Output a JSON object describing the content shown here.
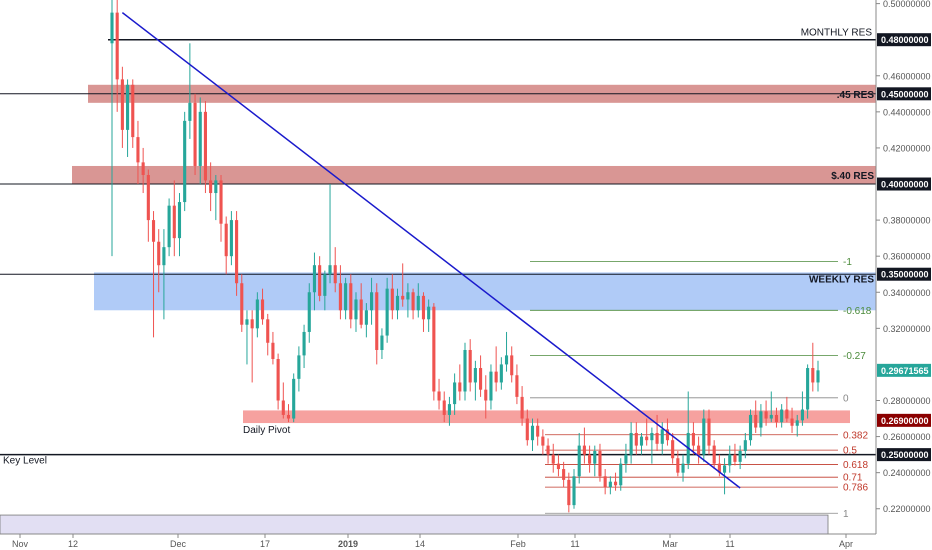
{
  "chart_data": {
    "type": "candlestick",
    "y_axis": {
      "side": "right",
      "ylim": [
        0.206,
        0.502
      ],
      "ticks": [
        {
          "value": 0.5,
          "label": "0.50000000"
        },
        {
          "value": 0.46,
          "label": "0.46000000"
        },
        {
          "value": 0.44,
          "label": "0.44000000"
        },
        {
          "value": 0.42,
          "label": "0.42000000"
        },
        {
          "value": 0.38,
          "label": "0.38000000"
        },
        {
          "value": 0.36,
          "label": "0.36000000"
        },
        {
          "value": 0.34,
          "label": "0.34000000"
        },
        {
          "value": 0.32,
          "label": "0.32000000"
        },
        {
          "value": 0.28,
          "label": "0.28000000"
        },
        {
          "value": 0.26,
          "label": "0.26000000"
        },
        {
          "value": 0.24,
          "label": "0.24000000"
        },
        {
          "value": 0.22,
          "label": "0.22000000"
        }
      ]
    },
    "x_axis": {
      "ticks": [
        {
          "label": "Nov",
          "bold": false
        },
        {
          "label": "12",
          "bold": false
        },
        {
          "label": "Dec",
          "bold": false
        },
        {
          "label": "17",
          "bold": false
        },
        {
          "label": "2019",
          "bold": true
        },
        {
          "label": "14",
          "bold": false
        },
        {
          "label": "Feb",
          "bold": false
        },
        {
          "label": "11",
          "bold": false
        },
        {
          "label": "Mar",
          "bold": false
        },
        {
          "label": "11",
          "bold": false
        },
        {
          "label": "Apr",
          "bold": false
        }
      ]
    },
    "price_tags": [
      {
        "value": 0.48,
        "label": "0.48000000",
        "bg": "#131722",
        "fg": "#ffffff"
      },
      {
        "value": 0.45,
        "label": "0.45000000",
        "bg": "#131722",
        "fg": "#ffffff"
      },
      {
        "value": 0.4,
        "label": "0.40000000",
        "bg": "#131722",
        "fg": "#ffffff"
      },
      {
        "value": 0.35,
        "label": "0.35000000",
        "bg": "#131722",
        "fg": "#ffffff"
      },
      {
        "value": 0.29671565,
        "label": "0.29671565",
        "bg": "#26a69a",
        "fg": "#ffffff"
      },
      {
        "value": 0.269,
        "label": "0.26900000",
        "bg": "#8b0000",
        "fg": "#ffffff"
      },
      {
        "value": 0.25,
        "label": "0.25000000",
        "bg": "#131722",
        "fg": "#ffffff"
      }
    ],
    "horizontal_levels": [
      {
        "value": 0.48,
        "label": "MONTHLY RES",
        "color": "#131722",
        "width": 1.5
      },
      {
        "value": 0.45,
        "label": "",
        "color": "#131722",
        "width": 1
      },
      {
        "value": 0.4,
        "label": "",
        "color": "#131722",
        "width": 1
      },
      {
        "value": 0.35,
        "label": "",
        "color": "#131722",
        "width": 1
      },
      {
        "value": 0.25,
        "label": "Key Level",
        "color": "#131722",
        "width": 1.5
      }
    ],
    "zones": [
      {
        "top": 0.455,
        "bottom": 0.445,
        "label": ".45 RES",
        "color": "#c0504d",
        "opacity": 0.6
      },
      {
        "top": 0.41,
        "bottom": 0.4,
        "label": "$.40 RES",
        "color": "#c0504d",
        "opacity": 0.6
      },
      {
        "top": 0.351,
        "bottom": 0.33,
        "label": "WEEKLY RES",
        "color": "#6fa0f0",
        "opacity": 0.55
      },
      {
        "top": 0.2745,
        "bottom": 0.2675,
        "label": "Daily Pivot",
        "color": "#ef5350",
        "opacity": 0.55
      },
      {
        "top": 0.2165,
        "bottom": 0.2035,
        "label": "",
        "color": "#c5c0e8",
        "opacity": 0.5
      }
    ],
    "fib_upper": [
      {
        "label": "-1",
        "value": 0.357,
        "color": "#4a8a3a"
      },
      {
        "label": "-0.618",
        "value": 0.33,
        "color": "#4a8a3a"
      },
      {
        "label": "-0.27",
        "value": 0.305,
        "color": "#4a8a3a"
      },
      {
        "label": "0",
        "value": 0.2815,
        "color": "#888888"
      }
    ],
    "fib_lower": [
      {
        "label": "0.382",
        "value": 0.261,
        "color": "#c0392b"
      },
      {
        "label": "0.5",
        "value": 0.2525,
        "color": "#c0392b"
      },
      {
        "label": "0.618",
        "value": 0.2445,
        "color": "#c0392b"
      },
      {
        "label": "0.71",
        "value": 0.2375,
        "color": "#c0392b"
      },
      {
        "label": "0.786",
        "value": 0.232,
        "color": "#c0392b"
      },
      {
        "label": "1",
        "value": 0.2175,
        "color": "#888888"
      }
    ],
    "trendline": {
      "from": {
        "bar": 2,
        "value": 0.495
      },
      "to": {
        "bar": 121,
        "value": 0.2315
      },
      "color": "#1a1acc"
    },
    "candles": [
      {
        "o": 0.478,
        "h": 0.505,
        "l": 0.36,
        "c": 0.495
      },
      {
        "o": 0.495,
        "h": 0.505,
        "l": 0.44,
        "c": 0.458
      },
      {
        "o": 0.458,
        "h": 0.465,
        "l": 0.42,
        "c": 0.43
      },
      {
        "o": 0.43,
        "h": 0.458,
        "l": 0.415,
        "c": 0.455
      },
      {
        "o": 0.455,
        "h": 0.458,
        "l": 0.42,
        "c": 0.426
      },
      {
        "o": 0.426,
        "h": 0.435,
        "l": 0.4,
        "c": 0.412
      },
      {
        "o": 0.412,
        "h": 0.42,
        "l": 0.395,
        "c": 0.405
      },
      {
        "o": 0.405,
        "h": 0.408,
        "l": 0.368,
        "c": 0.38
      },
      {
        "o": 0.38,
        "h": 0.385,
        "l": 0.315,
        "c": 0.368
      },
      {
        "o": 0.368,
        "h": 0.375,
        "l": 0.34,
        "c": 0.355
      },
      {
        "o": 0.355,
        "h": 0.375,
        "l": 0.325,
        "c": 0.365
      },
      {
        "o": 0.365,
        "h": 0.392,
        "l": 0.36,
        "c": 0.388
      },
      {
        "o": 0.388,
        "h": 0.402,
        "l": 0.36,
        "c": 0.37
      },
      {
        "o": 0.37,
        "h": 0.395,
        "l": 0.36,
        "c": 0.39
      },
      {
        "o": 0.39,
        "h": 0.44,
        "l": 0.385,
        "c": 0.435
      },
      {
        "o": 0.435,
        "h": 0.478,
        "l": 0.425,
        "c": 0.445
      },
      {
        "o": 0.445,
        "h": 0.45,
        "l": 0.405,
        "c": 0.41
      },
      {
        "o": 0.41,
        "h": 0.448,
        "l": 0.4,
        "c": 0.44
      },
      {
        "o": 0.44,
        "h": 0.446,
        "l": 0.395,
        "c": 0.402
      },
      {
        "o": 0.402,
        "h": 0.412,
        "l": 0.385,
        "c": 0.395
      },
      {
        "o": 0.395,
        "h": 0.405,
        "l": 0.38,
        "c": 0.402
      },
      {
        "o": 0.402,
        "h": 0.405,
        "l": 0.368,
        "c": 0.378
      },
      {
        "o": 0.378,
        "h": 0.382,
        "l": 0.35,
        "c": 0.36
      },
      {
        "o": 0.36,
        "h": 0.385,
        "l": 0.355,
        "c": 0.38
      },
      {
        "o": 0.38,
        "h": 0.385,
        "l": 0.338,
        "c": 0.345
      },
      {
        "o": 0.345,
        "h": 0.35,
        "l": 0.318,
        "c": 0.322
      },
      {
        "o": 0.322,
        "h": 0.33,
        "l": 0.3,
        "c": 0.325
      },
      {
        "o": 0.325,
        "h": 0.33,
        "l": 0.29,
        "c": 0.32
      },
      {
        "o": 0.32,
        "h": 0.34,
        "l": 0.315,
        "c": 0.336
      },
      {
        "o": 0.336,
        "h": 0.342,
        "l": 0.322,
        "c": 0.325
      },
      {
        "o": 0.325,
        "h": 0.328,
        "l": 0.305,
        "c": 0.312
      },
      {
        "o": 0.312,
        "h": 0.318,
        "l": 0.3,
        "c": 0.303
      },
      {
        "o": 0.303,
        "h": 0.306,
        "l": 0.275,
        "c": 0.28
      },
      {
        "o": 0.28,
        "h": 0.29,
        "l": 0.27,
        "c": 0.272
      },
      {
        "o": 0.272,
        "h": 0.278,
        "l": 0.268,
        "c": 0.27
      },
      {
        "o": 0.27,
        "h": 0.295,
        "l": 0.268,
        "c": 0.292
      },
      {
        "o": 0.292,
        "h": 0.31,
        "l": 0.285,
        "c": 0.305
      },
      {
        "o": 0.305,
        "h": 0.322,
        "l": 0.298,
        "c": 0.318
      },
      {
        "o": 0.318,
        "h": 0.345,
        "l": 0.312,
        "c": 0.34
      },
      {
        "o": 0.34,
        "h": 0.362,
        "l": 0.33,
        "c": 0.355
      },
      {
        "o": 0.355,
        "h": 0.36,
        "l": 0.335,
        "c": 0.338
      },
      {
        "o": 0.338,
        "h": 0.352,
        "l": 0.33,
        "c": 0.35
      },
      {
        "o": 0.35,
        "h": 0.4,
        "l": 0.345,
        "c": 0.355
      },
      {
        "o": 0.355,
        "h": 0.365,
        "l": 0.34,
        "c": 0.345
      },
      {
        "o": 0.345,
        "h": 0.355,
        "l": 0.325,
        "c": 0.33
      },
      {
        "o": 0.33,
        "h": 0.348,
        "l": 0.325,
        "c": 0.345
      },
      {
        "o": 0.345,
        "h": 0.35,
        "l": 0.32,
        "c": 0.325
      },
      {
        "o": 0.325,
        "h": 0.34,
        "l": 0.318,
        "c": 0.336
      },
      {
        "o": 0.336,
        "h": 0.345,
        "l": 0.32,
        "c": 0.322
      },
      {
        "o": 0.322,
        "h": 0.334,
        "l": 0.315,
        "c": 0.33
      },
      {
        "o": 0.33,
        "h": 0.348,
        "l": 0.322,
        "c": 0.34
      },
      {
        "o": 0.34,
        "h": 0.345,
        "l": 0.3,
        "c": 0.308
      },
      {
        "o": 0.308,
        "h": 0.32,
        "l": 0.303,
        "c": 0.316
      },
      {
        "o": 0.316,
        "h": 0.348,
        "l": 0.312,
        "c": 0.342
      },
      {
        "o": 0.342,
        "h": 0.35,
        "l": 0.325,
        "c": 0.33
      },
      {
        "o": 0.33,
        "h": 0.342,
        "l": 0.325,
        "c": 0.338
      },
      {
        "o": 0.338,
        "h": 0.356,
        "l": 0.332,
        "c": 0.336
      },
      {
        "o": 0.336,
        "h": 0.345,
        "l": 0.326,
        "c": 0.34
      },
      {
        "o": 0.34,
        "h": 0.342,
        "l": 0.325,
        "c": 0.33
      },
      {
        "o": 0.33,
        "h": 0.345,
        "l": 0.326,
        "c": 0.338
      },
      {
        "o": 0.338,
        "h": 0.34,
        "l": 0.318,
        "c": 0.325
      },
      {
        "o": 0.325,
        "h": 0.336,
        "l": 0.318,
        "c": 0.332
      },
      {
        "o": 0.332,
        "h": 0.334,
        "l": 0.28,
        "c": 0.285
      },
      {
        "o": 0.285,
        "h": 0.292,
        "l": 0.275,
        "c": 0.28
      },
      {
        "o": 0.28,
        "h": 0.285,
        "l": 0.268,
        "c": 0.272
      },
      {
        "o": 0.272,
        "h": 0.282,
        "l": 0.266,
        "c": 0.278
      },
      {
        "o": 0.278,
        "h": 0.295,
        "l": 0.272,
        "c": 0.29
      },
      {
        "o": 0.29,
        "h": 0.3,
        "l": 0.28,
        "c": 0.285
      },
      {
        "o": 0.285,
        "h": 0.312,
        "l": 0.28,
        "c": 0.308
      },
      {
        "o": 0.308,
        "h": 0.314,
        "l": 0.285,
        "c": 0.29
      },
      {
        "o": 0.29,
        "h": 0.302,
        "l": 0.28,
        "c": 0.298
      },
      {
        "o": 0.298,
        "h": 0.305,
        "l": 0.282,
        "c": 0.286
      },
      {
        "o": 0.286,
        "h": 0.294,
        "l": 0.27,
        "c": 0.28
      },
      {
        "o": 0.28,
        "h": 0.3,
        "l": 0.275,
        "c": 0.296
      },
      {
        "o": 0.296,
        "h": 0.31,
        "l": 0.285,
        "c": 0.29
      },
      {
        "o": 0.29,
        "h": 0.304,
        "l": 0.286,
        "c": 0.3
      },
      {
        "o": 0.3,
        "h": 0.318,
        "l": 0.296,
        "c": 0.305
      },
      {
        "o": 0.305,
        "h": 0.31,
        "l": 0.29,
        "c": 0.294
      },
      {
        "o": 0.294,
        "h": 0.3,
        "l": 0.278,
        "c": 0.282
      },
      {
        "o": 0.282,
        "h": 0.288,
        "l": 0.266,
        "c": 0.27
      },
      {
        "o": 0.27,
        "h": 0.275,
        "l": 0.255,
        "c": 0.258
      },
      {
        "o": 0.258,
        "h": 0.27,
        "l": 0.252,
        "c": 0.266
      },
      {
        "o": 0.266,
        "h": 0.27,
        "l": 0.255,
        "c": 0.26
      },
      {
        "o": 0.26,
        "h": 0.264,
        "l": 0.25,
        "c": 0.255
      },
      {
        "o": 0.255,
        "h": 0.259,
        "l": 0.245,
        "c": 0.25
      },
      {
        "o": 0.25,
        "h": 0.256,
        "l": 0.24,
        "c": 0.245
      },
      {
        "o": 0.245,
        "h": 0.25,
        "l": 0.238,
        "c": 0.242
      },
      {
        "o": 0.242,
        "h": 0.246,
        "l": 0.232,
        "c": 0.236
      },
      {
        "o": 0.236,
        "h": 0.24,
        "l": 0.218,
        "c": 0.222
      },
      {
        "o": 0.222,
        "h": 0.242,
        "l": 0.22,
        "c": 0.238
      },
      {
        "o": 0.238,
        "h": 0.262,
        "l": 0.234,
        "c": 0.255
      },
      {
        "o": 0.255,
        "h": 0.265,
        "l": 0.245,
        "c": 0.25
      },
      {
        "o": 0.25,
        "h": 0.255,
        "l": 0.24,
        "c": 0.245
      },
      {
        "o": 0.245,
        "h": 0.255,
        "l": 0.238,
        "c": 0.252
      },
      {
        "o": 0.252,
        "h": 0.256,
        "l": 0.235,
        "c": 0.238
      },
      {
        "o": 0.238,
        "h": 0.242,
        "l": 0.228,
        "c": 0.232
      },
      {
        "o": 0.232,
        "h": 0.238,
        "l": 0.228,
        "c": 0.235
      },
      {
        "o": 0.235,
        "h": 0.24,
        "l": 0.23,
        "c": 0.233
      },
      {
        "o": 0.233,
        "h": 0.248,
        "l": 0.23,
        "c": 0.245
      },
      {
        "o": 0.245,
        "h": 0.256,
        "l": 0.24,
        "c": 0.25
      },
      {
        "o": 0.25,
        "h": 0.268,
        "l": 0.245,
        "c": 0.262
      },
      {
        "o": 0.262,
        "h": 0.268,
        "l": 0.25,
        "c": 0.255
      },
      {
        "o": 0.255,
        "h": 0.262,
        "l": 0.25,
        "c": 0.26
      },
      {
        "o": 0.26,
        "h": 0.27,
        "l": 0.255,
        "c": 0.258
      },
      {
        "o": 0.258,
        "h": 0.265,
        "l": 0.245,
        "c": 0.262
      },
      {
        "o": 0.262,
        "h": 0.272,
        "l": 0.252,
        "c": 0.256
      },
      {
        "o": 0.256,
        "h": 0.268,
        "l": 0.25,
        "c": 0.264
      },
      {
        "o": 0.264,
        "h": 0.27,
        "l": 0.255,
        "c": 0.258
      },
      {
        "o": 0.258,
        "h": 0.262,
        "l": 0.245,
        "c": 0.248
      },
      {
        "o": 0.248,
        "h": 0.252,
        "l": 0.238,
        "c": 0.24
      },
      {
        "o": 0.24,
        "h": 0.25,
        "l": 0.235,
        "c": 0.245
      },
      {
        "o": 0.245,
        "h": 0.285,
        "l": 0.242,
        "c": 0.262
      },
      {
        "o": 0.262,
        "h": 0.268,
        "l": 0.25,
        "c": 0.255
      },
      {
        "o": 0.255,
        "h": 0.26,
        "l": 0.245,
        "c": 0.25
      },
      {
        "o": 0.25,
        "h": 0.275,
        "l": 0.246,
        "c": 0.27
      },
      {
        "o": 0.27,
        "h": 0.275,
        "l": 0.25,
        "c": 0.255
      },
      {
        "o": 0.255,
        "h": 0.258,
        "l": 0.242,
        "c": 0.245
      },
      {
        "o": 0.245,
        "h": 0.25,
        "l": 0.238,
        "c": 0.24
      },
      {
        "o": 0.24,
        "h": 0.248,
        "l": 0.228,
        "c": 0.244
      },
      {
        "o": 0.244,
        "h": 0.255,
        "l": 0.24,
        "c": 0.25
      },
      {
        "o": 0.25,
        "h": 0.256,
        "l": 0.244,
        "c": 0.246
      },
      {
        "o": 0.246,
        "h": 0.255,
        "l": 0.242,
        "c": 0.252
      },
      {
        "o": 0.252,
        "h": 0.262,
        "l": 0.248,
        "c": 0.258
      },
      {
        "o": 0.258,
        "h": 0.275,
        "l": 0.255,
        "c": 0.272
      },
      {
        "o": 0.272,
        "h": 0.28,
        "l": 0.262,
        "c": 0.265
      },
      {
        "o": 0.265,
        "h": 0.278,
        "l": 0.26,
        "c": 0.274
      },
      {
        "o": 0.274,
        "h": 0.28,
        "l": 0.266,
        "c": 0.27
      },
      {
        "o": 0.27,
        "h": 0.285,
        "l": 0.268,
        "c": 0.272
      },
      {
        "o": 0.272,
        "h": 0.276,
        "l": 0.265,
        "c": 0.268
      },
      {
        "o": 0.268,
        "h": 0.278,
        "l": 0.265,
        "c": 0.275
      },
      {
        "o": 0.275,
        "h": 0.282,
        "l": 0.268,
        "c": 0.27
      },
      {
        "o": 0.27,
        "h": 0.276,
        "l": 0.262,
        "c": 0.266
      },
      {
        "o": 0.266,
        "h": 0.272,
        "l": 0.26,
        "c": 0.269
      },
      {
        "o": 0.269,
        "h": 0.285,
        "l": 0.266,
        "c": 0.275
      },
      {
        "o": 0.275,
        "h": 0.3,
        "l": 0.27,
        "c": 0.298
      },
      {
        "o": 0.298,
        "h": 0.312,
        "l": 0.285,
        "c": 0.29
      },
      {
        "o": 0.29,
        "h": 0.302,
        "l": 0.285,
        "c": 0.29671565
      }
    ]
  }
}
